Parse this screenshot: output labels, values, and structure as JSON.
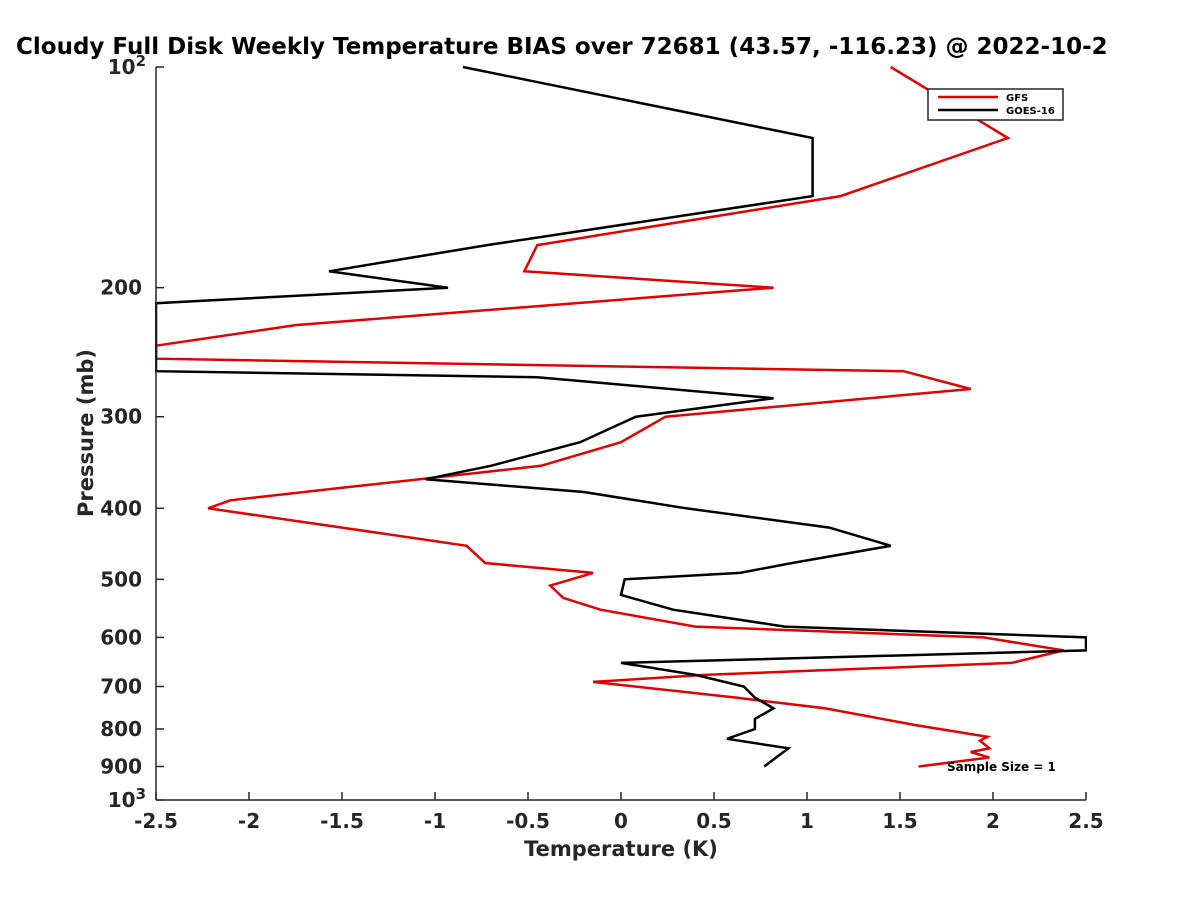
{
  "chart_data": {
    "type": "line",
    "title": "Cloudy Full Disk Weekly Temperature BIAS over 72681 (43.57, -116.23) @ 2022-10-2",
    "xlabel": "Temperature (K)",
    "ylabel": "Pressure (mb)",
    "xlim": [
      -2.5,
      2.5
    ],
    "ylim": [
      100,
      1000
    ],
    "y_scale": "log",
    "y_reversed": true,
    "x_ticks": [
      -2.5,
      -2,
      -1.5,
      -1,
      -0.5,
      0,
      0.5,
      1,
      1.5,
      2,
      2.5
    ],
    "x_tick_labels": [
      "-2.5",
      "-2",
      "-1.5",
      "-1",
      "-0.5",
      "0",
      "0.5",
      "1",
      "1.5",
      "2",
      "2.5"
    ],
    "y_ticks": [
      200,
      300,
      400,
      500,
      600,
      700,
      800,
      900
    ],
    "y_tick_labels": [
      "200",
      "300",
      "400",
      "500",
      "600",
      "700",
      "800",
      "900"
    ],
    "y_end_labels": [
      {
        "value": 100,
        "base": "10",
        "exp": "2"
      },
      {
        "value": 1000,
        "base": "10",
        "exp": "3"
      }
    ],
    "grid": false,
    "legend_position": "top-right",
    "series": [
      {
        "name": "GFS",
        "color": "#e00000",
        "x": [
          1.45,
          2.08,
          1.18,
          -0.45,
          -0.52,
          0.82,
          -1.75,
          -2.5,
          -2.5,
          1.52,
          1.88,
          0.24,
          0,
          -0.43,
          -1.5,
          -2.1,
          -2.22,
          -1.5,
          -0.83,
          -0.73,
          -0.15,
          -0.38,
          -0.31,
          -0.11,
          0.4,
          1.95,
          2.38,
          2.1,
          0.45,
          -0.15,
          0.62,
          1.1,
          1.58,
          1.97,
          1.93,
          1.98,
          1.88,
          1.98,
          1.6
        ],
        "y": [
          100,
          125,
          150,
          175,
          190,
          200,
          225,
          240,
          250,
          260,
          275,
          300,
          325,
          350,
          375,
          390,
          400,
          425,
          450,
          475,
          490,
          510,
          530,
          550,
          580,
          600,
          625,
          650,
          675,
          690,
          725,
          750,
          790,
          820,
          830,
          850,
          860,
          875,
          900
        ]
      },
      {
        "name": "GOES-16",
        "color": "#000000",
        "x": [
          -0.85,
          1.03,
          1.03,
          -0.72,
          -1.57,
          -0.93,
          -2.5,
          -2.5,
          -0.45,
          0.82,
          0.08,
          -0.22,
          -0.7,
          -1.05,
          -0.2,
          0.35,
          1.12,
          1.45,
          0.92,
          0.64,
          0.02,
          0,
          0.28,
          0.88,
          2.5,
          2.5,
          0,
          0.4,
          0.66,
          0.72,
          0.82,
          0.72,
          0.72,
          0.57,
          0.9,
          0.77
        ],
        "y": [
          100,
          125,
          150,
          175,
          190,
          200,
          210,
          260,
          265,
          283,
          300,
          325,
          350,
          365,
          380,
          400,
          425,
          450,
          475,
          490,
          500,
          525,
          550,
          580,
          600,
          625,
          650,
          675,
          700,
          725,
          750,
          775,
          800,
          825,
          850,
          900
        ]
      }
    ],
    "annotations": [
      "Sample Size = 1"
    ]
  }
}
